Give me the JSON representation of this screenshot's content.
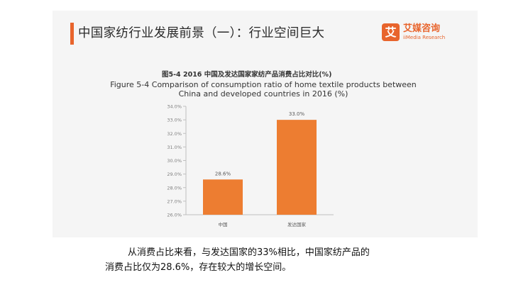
{
  "slide": {
    "title": "中国家纺行业发展前景（一）：行业空间巨大"
  },
  "logo": {
    "mark": "艾",
    "name": "艾媒咨询",
    "sub": "iiMedia Research"
  },
  "figure": {
    "title_cn": "图5-4 2016 中国及发达国家家纺产品消费占比对比(%)",
    "title_en": "Figure 5-4 Comparison of consumption ratio of home textile products between China and developed countries in 2016 (%)"
  },
  "colors": {
    "accent": "#e8642c",
    "bar": "#ed7d31"
  },
  "chart_data": {
    "type": "bar",
    "categories": [
      "中国",
      "发达国家"
    ],
    "values": [
      28.6,
      33.0
    ],
    "value_labels": [
      "28.6%",
      "33.0%"
    ],
    "ylim": [
      26.0,
      34.0
    ],
    "yticks": [
      "26.0%",
      "27.0%",
      "28.0%",
      "29.0%",
      "30.0%",
      "31.0%",
      "32.0%",
      "33.0%",
      "34.0%"
    ],
    "grid": false,
    "legend": "none"
  },
  "caption": {
    "line1": "从消费占比来看，与发达国家的33%相比，中国家纺产品的",
    "line2": "消费占比仅为28.6%，存在较大的增长空间。"
  }
}
